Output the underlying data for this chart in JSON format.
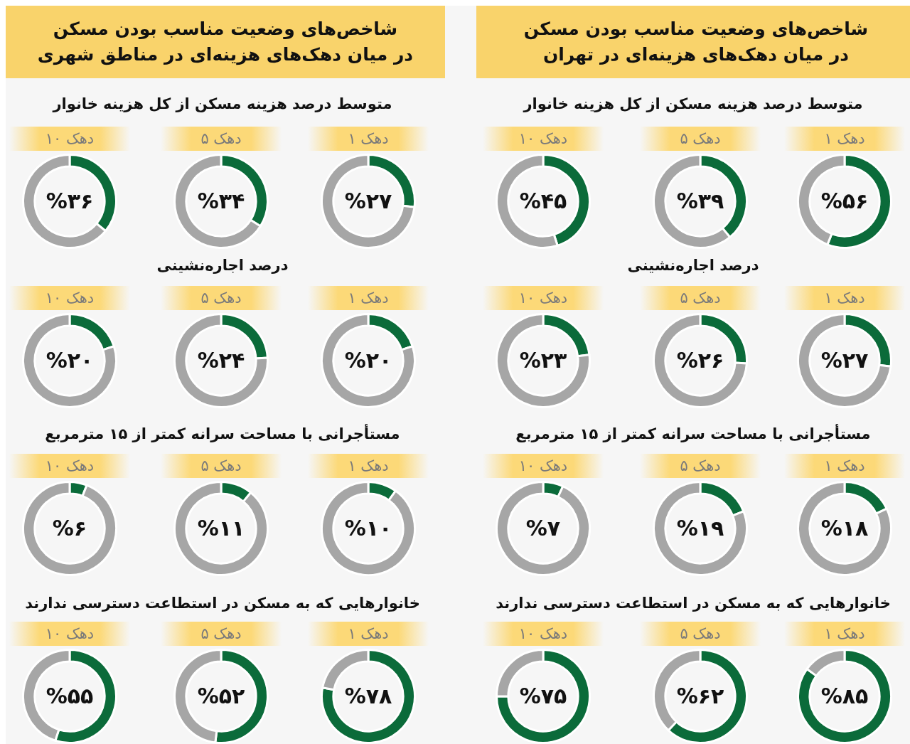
{
  "chart_data": [
    {
      "type": "donut",
      "title": "دهک ۱",
      "annotations": [
        "شاخص‌های وضعیت مناسب بودن مسکن\nدر میان دهک‌های هزینه‌ای در تهران",
        "متوسط درصد هزینه مسکن از کل هزینه خانوار"
      ],
      "categories": [
        null,
        null
      ],
      "values": [
        56,
        44
      ],
      "colors": [
        "#0b6b3a",
        "#a6a6a6"
      ],
      "value_labels": [
        "%۵۶",
        null
      ]
    },
    {
      "type": "donut",
      "title": "دهک ۵",
      "categories": [
        null,
        null
      ],
      "values": [
        39,
        61
      ],
      "colors": [
        "#0b6b3a",
        "#a6a6a6"
      ],
      "value_labels": [
        "%۳۹",
        null
      ]
    },
    {
      "type": "donut",
      "title": "دهک ۱۰",
      "categories": [
        null,
        null
      ],
      "values": [
        45,
        55
      ],
      "colors": [
        "#0b6b3a",
        "#a6a6a6"
      ],
      "value_labels": [
        "%۴۵",
        null
      ]
    },
    {
      "type": "donut",
      "title": "دهک ۱",
      "annotations": [
        "درصد اجاره‌نشینی"
      ],
      "categories": [
        null,
        null
      ],
      "values": [
        27,
        73
      ],
      "colors": [
        "#0b6b3a",
        "#a6a6a6"
      ],
      "value_labels": [
        "%۲۷",
        null
      ]
    },
    {
      "type": "donut",
      "title": "دهک ۵",
      "categories": [
        null,
        null
      ],
      "values": [
        26,
        74
      ],
      "colors": [
        "#0b6b3a",
        "#a6a6a6"
      ],
      "value_labels": [
        "%۲۶",
        null
      ]
    },
    {
      "type": "donut",
      "title": "دهک ۱۰",
      "categories": [
        null,
        null
      ],
      "values": [
        23,
        77
      ],
      "colors": [
        "#0b6b3a",
        "#a6a6a6"
      ],
      "value_labels": [
        "%۲۳",
        null
      ]
    },
    {
      "type": "donut",
      "title": "دهک ۱",
      "annotations": [
        "مستأجرانی با مساحت سرانه کمتر از ۱۵ مترمربع"
      ],
      "categories": [
        null,
        null
      ],
      "values": [
        18,
        82
      ],
      "colors": [
        "#0b6b3a",
        "#a6a6a6"
      ],
      "value_labels": [
        "%۱۸",
        null
      ]
    },
    {
      "type": "donut",
      "title": "دهک ۵",
      "categories": [
        null,
        null
      ],
      "values": [
        19,
        81
      ],
      "colors": [
        "#0b6b3a",
        "#a6a6a6"
      ],
      "value_labels": [
        "%۱۹",
        null
      ]
    },
    {
      "type": "donut",
      "title": "دهک ۱۰",
      "categories": [
        null,
        null
      ],
      "values": [
        7,
        93
      ],
      "colors": [
        "#0b6b3a",
        "#a6a6a6"
      ],
      "value_labels": [
        "%۷",
        null
      ]
    },
    {
      "type": "donut",
      "title": "دهک ۱",
      "annotations": [
        "خانوارهایی که به مسکن در استطاعت دسترسی ندارند"
      ],
      "categories": [
        null,
        null
      ],
      "values": [
        85,
        15
      ],
      "colors": [
        "#0b6b3a",
        "#a6a6a6"
      ],
      "value_labels": [
        "%۸۵",
        null
      ]
    },
    {
      "type": "donut",
      "title": "دهک ۵",
      "categories": [
        null,
        null
      ],
      "values": [
        62,
        38
      ],
      "colors": [
        "#0b6b3a",
        "#a6a6a6"
      ],
      "value_labels": [
        "%۶۲",
        null
      ]
    },
    {
      "type": "donut",
      "title": "دهک ۱۰",
      "categories": [
        null,
        null
      ],
      "values": [
        75,
        25
      ],
      "colors": [
        "#0b6b3a",
        "#a6a6a6"
      ],
      "value_labels": [
        "%۷۵",
        null
      ]
    },
    {
      "type": "donut",
      "title": "دهک ۱",
      "annotations": [
        "شاخص‌های وضعیت مناسب بودن مسکن\nدر میان دهک‌های هزینه‌ای در مناطق شهری",
        "متوسط درصد هزینه مسکن از کل هزینه خانوار"
      ],
      "categories": [
        null,
        null
      ],
      "values": [
        27,
        73
      ],
      "colors": [
        "#0b6b3a",
        "#a6a6a6"
      ],
      "value_labels": [
        "%۲۷",
        null
      ]
    },
    {
      "type": "donut",
      "title": "دهک ۵",
      "categories": [
        null,
        null
      ],
      "values": [
        34,
        66
      ],
      "colors": [
        "#0b6b3a",
        "#a6a6a6"
      ],
      "value_labels": [
        "%۳۴",
        null
      ]
    },
    {
      "type": "donut",
      "title": "دهک ۱۰",
      "categories": [
        null,
        null
      ],
      "values": [
        36,
        64
      ],
      "colors": [
        "#0b6b3a",
        "#a6a6a6"
      ],
      "value_labels": [
        "%۳۶",
        null
      ]
    },
    {
      "type": "donut",
      "title": "دهک ۱",
      "annotations": [
        "درصد اجاره‌نشینی"
      ],
      "categories": [
        null,
        null
      ],
      "values": [
        20,
        80
      ],
      "colors": [
        "#0b6b3a",
        "#a6a6a6"
      ],
      "value_labels": [
        "%۲۰",
        null
      ]
    },
    {
      "type": "donut",
      "title": "دهک ۵",
      "categories": [
        null,
        null
      ],
      "values": [
        24,
        76
      ],
      "colors": [
        "#0b6b3a",
        "#a6a6a6"
      ],
      "value_labels": [
        "%۲۴",
        null
      ]
    },
    {
      "type": "donut",
      "title": "دهک ۱۰",
      "categories": [
        null,
        null
      ],
      "values": [
        20,
        80
      ],
      "colors": [
        "#0b6b3a",
        "#a6a6a6"
      ],
      "value_labels": [
        "%۲۰",
        null
      ]
    },
    {
      "type": "donut",
      "title": "دهک ۱",
      "annotations": [
        "مستأجرانی با مساحت سرانه کمتر از ۱۵ مترمربع"
      ],
      "categories": [
        null,
        null
      ],
      "values": [
        10,
        90
      ],
      "colors": [
        "#0b6b3a",
        "#a6a6a6"
      ],
      "value_labels": [
        "%۱۰",
        null
      ]
    },
    {
      "type": "donut",
      "title": "دهک ۵",
      "categories": [
        null,
        null
      ],
      "values": [
        11,
        89
      ],
      "colors": [
        "#0b6b3a",
        "#a6a6a6"
      ],
      "value_labels": [
        "%۱۱",
        null
      ]
    },
    {
      "type": "donut",
      "title": "دهک ۱۰",
      "categories": [
        null,
        null
      ],
      "values": [
        6,
        94
      ],
      "colors": [
        "#0b6b3a",
        "#a6a6a6"
      ],
      "value_labels": [
        "%۶",
        null
      ]
    },
    {
      "type": "donut",
      "title": "دهک ۱",
      "annotations": [
        "خانوارهایی که به مسکن در استطاعت دسترسی ندارند"
      ],
      "categories": [
        null,
        null
      ],
      "values": [
        78,
        22
      ],
      "colors": [
        "#0b6b3a",
        "#a6a6a6"
      ],
      "value_labels": [
        "%۷۸",
        null
      ]
    },
    {
      "type": "donut",
      "title": "دهک ۵",
      "categories": [
        null,
        null
      ],
      "values": [
        52,
        48
      ],
      "colors": [
        "#0b6b3a",
        "#a6a6a6"
      ],
      "value_labels": [
        "%۵۲",
        null
      ]
    },
    {
      "type": "donut",
      "title": "دهک ۱۰",
      "categories": [
        null,
        null
      ],
      "values": [
        55,
        45
      ],
      "colors": [
        "#0b6b3a",
        "#a6a6a6"
      ],
      "value_labels": [
        "%۵۵",
        null
      ]
    }
  ]
}
